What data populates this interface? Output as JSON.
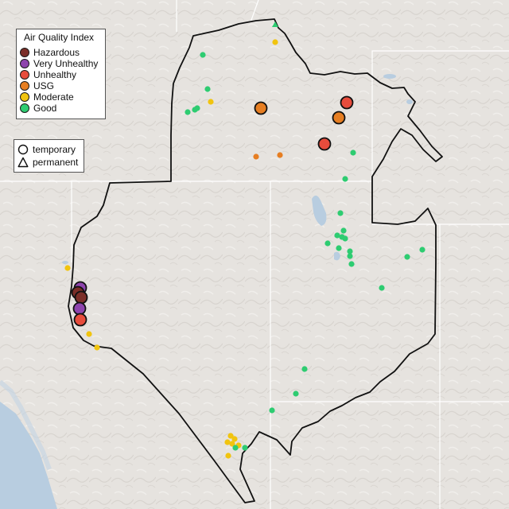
{
  "legend": {
    "title": "Air Quality Index",
    "categories": [
      {
        "label": "Hazardous",
        "color": "#7b2e28"
      },
      {
        "label": "Very Unhealthy",
        "color": "#8e44ad"
      },
      {
        "label": "Unhealthy",
        "color": "#e74c3c"
      },
      {
        "label": "USG",
        "color": "#e67e22"
      },
      {
        "label": "Moderate",
        "color": "#f1c40f"
      },
      {
        "label": "Good",
        "color": "#2ecc71"
      }
    ]
  },
  "type_legend": {
    "items": [
      {
        "label": "temporary",
        "shape": "circle"
      },
      {
        "label": "permanent",
        "shape": "triangle"
      }
    ]
  },
  "colors": {
    "land": "#e6e3df",
    "water": "#b8cde0",
    "boundary": "#111111",
    "state_line": "#ffffff"
  }
}
